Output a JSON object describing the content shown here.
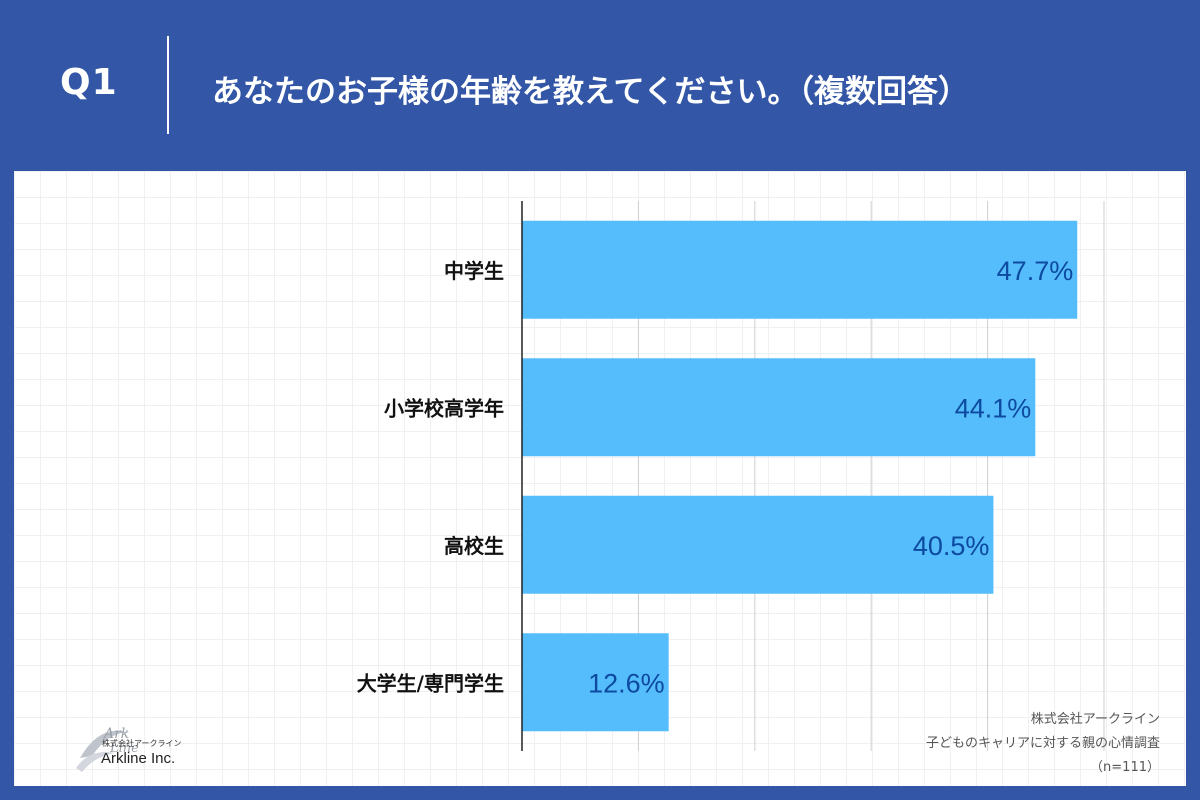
{
  "header": {
    "q_number": "Q1",
    "question": "あなたのお子様の年齢を教えてください。（複数回答）"
  },
  "chart_data": {
    "type": "bar",
    "orientation": "horizontal",
    "categories": [
      "中学生",
      "小学校高学年",
      "高校生",
      "大学生/専門学生"
    ],
    "values": [
      47.7,
      44.1,
      40.5,
      12.6
    ],
    "value_labels": [
      "47.7%",
      "44.1%",
      "40.5%",
      "12.6%"
    ],
    "xlim": [
      0,
      50
    ],
    "grid": true,
    "bar_color": "#55bdfc",
    "label_color": "#0d4aa0"
  },
  "logo": {
    "mark_text": "Ark Line",
    "company_small": "株式会社アークライン",
    "company_name": "Arkline Inc."
  },
  "source": {
    "company": "株式会社アークライン",
    "survey": "子どものキャリアに対する親の心情調査",
    "n": "（n=111）"
  }
}
